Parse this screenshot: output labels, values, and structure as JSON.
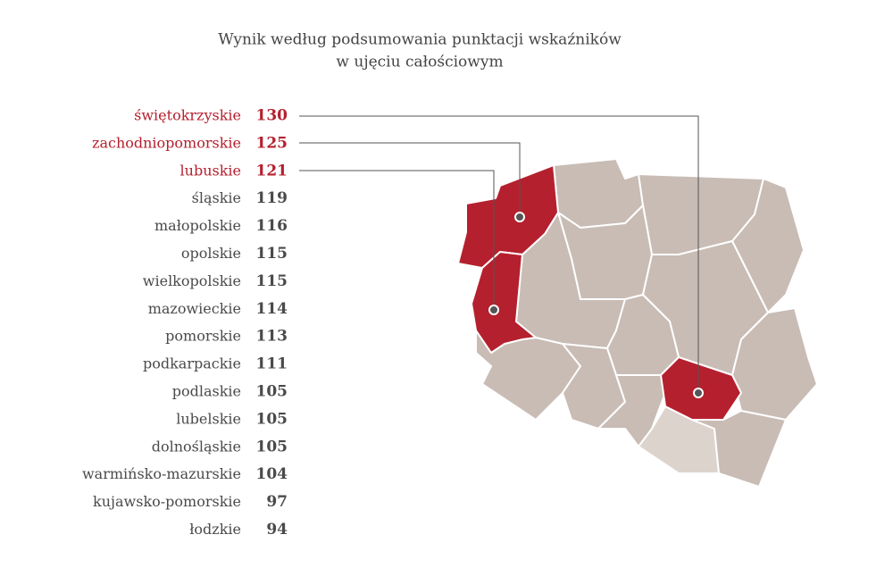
{
  "title": [
    "Wynik według podsumowania punktacji wskaźników",
    "w ujęciu całościowym"
  ],
  "highlight_color": "#b5202e",
  "text_color": "#4a4a4a",
  "ranking": [
    {
      "name": "świętokrzyskie",
      "value": 130,
      "highlighted": true
    },
    {
      "name": "zachodniopomorskie",
      "value": 125,
      "highlighted": true
    },
    {
      "name": "lubuskie",
      "value": 121,
      "highlighted": true
    },
    {
      "name": "śląskie",
      "value": 119,
      "highlighted": false
    },
    {
      "name": "małopolskie",
      "value": 116,
      "highlighted": false
    },
    {
      "name": "opolskie",
      "value": 115,
      "highlighted": false
    },
    {
      "name": "wielkopolskie",
      "value": 115,
      "highlighted": false
    },
    {
      "name": "mazowieckie",
      "value": 114,
      "highlighted": false
    },
    {
      "name": "pomorskie",
      "value": 113,
      "highlighted": false
    },
    {
      "name": "podkarpackie",
      "value": 111,
      "highlighted": false
    },
    {
      "name": "podlaskie",
      "value": 105,
      "highlighted": false
    },
    {
      "name": "lubelskie",
      "value": 105,
      "highlighted": false
    },
    {
      "name": "dolnośląskie",
      "value": 105,
      "highlighted": false
    },
    {
      "name": "warmińsko-mazurskie",
      "value": 104,
      "highlighted": false
    },
    {
      "name": "kujawsko-pomorskie",
      "value": 97,
      "highlighted": false
    },
    {
      "name": "łodzkie",
      "value": 94,
      "highlighted": false
    }
  ]
}
